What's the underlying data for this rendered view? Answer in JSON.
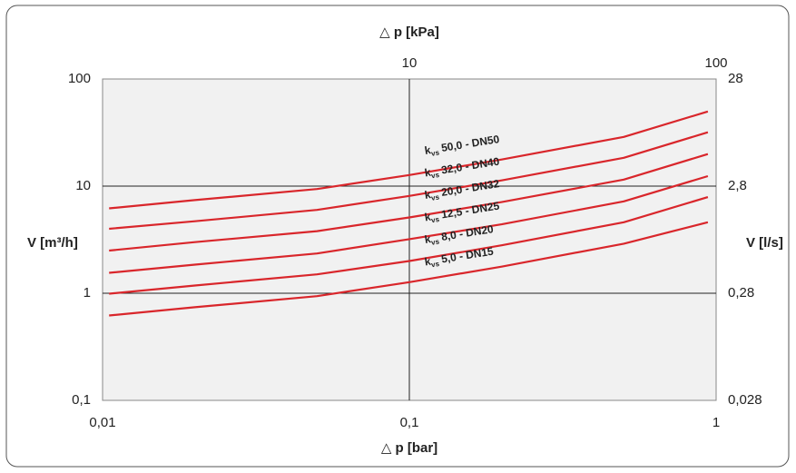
{
  "chart_data": {
    "type": "line",
    "x_label": "△ p [bar]",
    "x2_label": "△ p [kPa]",
    "y_label": "V [m³/h]",
    "y2_label": "V [l/s]",
    "log_x": true,
    "log_y": true,
    "grid": true,
    "color": "#d9262b",
    "curve_symbol": "k",
    "curve_symbol_sub": "vs",
    "xlim": [
      0.01,
      1
    ],
    "xticks": [
      {
        "value": 0.01,
        "label": "0,01"
      },
      {
        "value": 0.1,
        "label": "0,1"
      },
      1
    ],
    "x2lim": [
      1,
      100
    ],
    "x2ticks": [
      10,
      100
    ],
    "ylim": [
      0.1,
      100
    ],
    "yticks": [
      {
        "value": 0.1,
        "label": "0,1"
      },
      1,
      10,
      100
    ],
    "y2lim": [
      0.028,
      28
    ],
    "y2ticks": [
      {
        "value": 0.028,
        "label": "0,028"
      },
      {
        "value": 0.28,
        "label": "0,28"
      },
      {
        "value": 2.8,
        "label": "2,8"
      },
      28
    ],
    "x": [
      0.0105,
      0.02,
      0.05,
      0.1,
      0.2,
      0.5,
      0.94
    ],
    "series": [
      {
        "name": "50,0 - DN50",
        "values": [
          6.2,
          7.4,
          9.4,
          12.7,
          17.7,
          28.8,
          49.7
        ]
      },
      {
        "name": "32,0 - DN40",
        "values": [
          4.0,
          4.7,
          6.0,
          8.1,
          11.3,
          18.4,
          31.8
        ]
      },
      {
        "name": "20,0 - DN32",
        "values": [
          2.5,
          3.0,
          3.8,
          5.1,
          7.1,
          11.5,
          19.9
        ]
      },
      {
        "name": "12,5 - DN25",
        "values": [
          1.55,
          1.85,
          2.35,
          3.2,
          4.4,
          7.2,
          12.4
        ]
      },
      {
        "name": "8,0 - DN20",
        "values": [
          0.99,
          1.18,
          1.5,
          2.0,
          2.8,
          4.6,
          7.9
        ]
      },
      {
        "name": "5,0 - DN15",
        "values": [
          0.62,
          0.74,
          0.94,
          1.27,
          1.77,
          2.9,
          4.6
        ]
      }
    ]
  }
}
